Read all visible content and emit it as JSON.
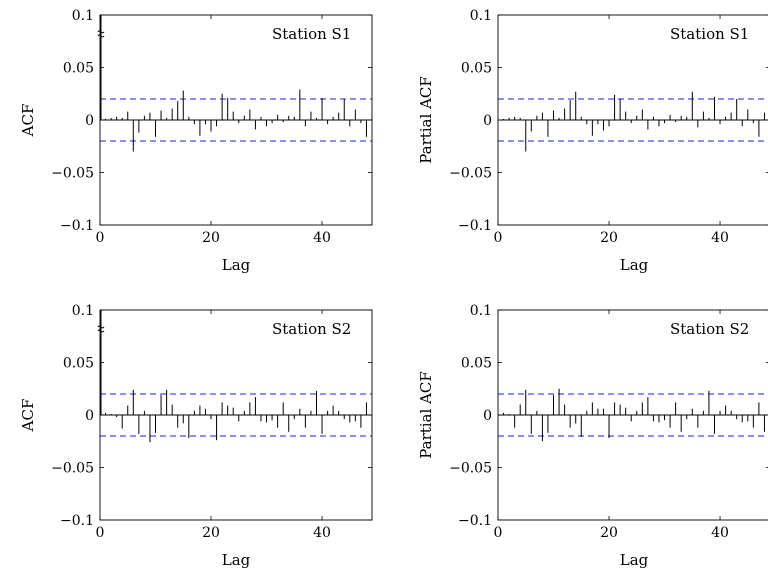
{
  "chart_data": [
    {
      "type": "bar",
      "title": "Station S1",
      "xlabel": "Lag",
      "ylabel": "ACF",
      "xlim": [
        0,
        49
      ],
      "ylim": [
        -0.1,
        0.1
      ],
      "x_ticks": [
        0,
        20,
        40
      ],
      "y_ticks": [
        -0.1,
        -0.05,
        0,
        0.05,
        0.1
      ],
      "x_tick_labels": [
        "0",
        "20",
        "40"
      ],
      "y_tick_labels": [
        "−0.1",
        "−0.05",
        "0",
        "0.05",
        "0.1"
      ],
      "confidence_band": [
        0.02,
        -0.02
      ],
      "truncated_lag0": true,
      "lags": [
        0,
        1,
        2,
        3,
        4,
        5,
        6,
        7,
        8,
        9,
        10,
        11,
        12,
        13,
        14,
        15,
        16,
        17,
        18,
        19,
        20,
        21,
        22,
        23,
        24,
        25,
        26,
        27,
        28,
        29,
        30,
        31,
        32,
        33,
        34,
        35,
        36,
        37,
        38,
        39,
        40,
        41,
        42,
        43,
        44,
        45,
        46,
        47,
        48,
        49
      ],
      "values": [
        0.1,
        0.001,
        0.002,
        0.003,
        0.002,
        0.008,
        -0.03,
        -0.012,
        0.004,
        0.007,
        -0.016,
        0.009,
        0.002,
        0.011,
        0.018,
        0.028,
        0.003,
        -0.004,
        -0.015,
        -0.004,
        -0.011,
        -0.006,
        0.025,
        0.021,
        0.008,
        -0.003,
        0.004,
        0.01,
        -0.009,
        0.003,
        -0.006,
        -0.003,
        0.005,
        -0.002,
        0.004,
        0.003,
        0.029,
        -0.006,
        0.008,
        0.002,
        0.021,
        -0.004,
        0.003,
        0.007,
        0.02,
        -0.006,
        0.01,
        -0.003,
        -0.016,
        0.007
      ]
    },
    {
      "type": "bar",
      "title": "Station S1",
      "xlabel": "Lag",
      "ylabel": "Partial ACF",
      "xlim": [
        0,
        49
      ],
      "ylim": [
        -0.1,
        0.1
      ],
      "x_ticks": [
        0,
        20,
        40
      ],
      "y_ticks": [
        -0.1,
        -0.05,
        0,
        0.05,
        0.1
      ],
      "x_tick_labels": [
        "0",
        "20",
        "40"
      ],
      "y_tick_labels": [
        "−0.1",
        "−0.05",
        "0",
        "0.05",
        "0.1"
      ],
      "confidence_band": [
        0.02,
        -0.02
      ],
      "truncated_lag0": false,
      "lags": [
        1,
        2,
        3,
        4,
        5,
        6,
        7,
        8,
        9,
        10,
        11,
        12,
        13,
        14,
        15,
        16,
        17,
        18,
        19,
        20,
        21,
        22,
        23,
        24,
        25,
        26,
        27,
        28,
        29,
        30,
        31,
        32,
        33,
        34,
        35,
        36,
        37,
        38,
        39,
        40,
        41,
        42,
        43,
        44,
        45,
        46,
        47,
        48,
        49
      ],
      "values": [
        0.001,
        0.002,
        0.003,
        0.002,
        -0.03,
        -0.011,
        0.004,
        0.007,
        -0.016,
        0.009,
        0.002,
        0.011,
        0.019,
        0.027,
        0.003,
        -0.004,
        -0.015,
        -0.004,
        -0.01,
        -0.006,
        0.024,
        0.02,
        0.008,
        -0.003,
        0.004,
        0.01,
        -0.009,
        0.003,
        -0.006,
        -0.003,
        0.005,
        -0.002,
        0.004,
        0.003,
        0.027,
        -0.007,
        0.008,
        0.002,
        0.022,
        -0.004,
        0.003,
        0.007,
        0.02,
        -0.006,
        0.01,
        -0.003,
        -0.016,
        0.007,
        0.003
      ]
    },
    {
      "type": "bar",
      "title": "Station S2",
      "xlabel": "Lag",
      "ylabel": "ACF",
      "xlim": [
        0,
        49
      ],
      "ylim": [
        -0.1,
        0.1
      ],
      "x_ticks": [
        0,
        20,
        40
      ],
      "y_ticks": [
        -0.1,
        -0.05,
        0,
        0.05,
        0.1
      ],
      "x_tick_labels": [
        "0",
        "20",
        "40"
      ],
      "y_tick_labels": [
        "−0.1",
        "−0.05",
        "0",
        "0.05",
        "0.1"
      ],
      "confidence_band": [
        0.02,
        -0.02
      ],
      "truncated_lag0": true,
      "lags": [
        0,
        1,
        2,
        3,
        4,
        5,
        6,
        7,
        8,
        9,
        10,
        11,
        12,
        13,
        14,
        15,
        16,
        17,
        18,
        19,
        20,
        21,
        22,
        23,
        24,
        25,
        26,
        27,
        28,
        29,
        30,
        31,
        32,
        33,
        34,
        35,
        36,
        37,
        38,
        39,
        40,
        41,
        42,
        43,
        44,
        45,
        46,
        47,
        48,
        49
      ],
      "values": [
        0.1,
        0.002,
        0.001,
        -0.002,
        -0.013,
        0.009,
        0.024,
        -0.018,
        0.004,
        -0.026,
        -0.017,
        0.019,
        0.024,
        0.01,
        -0.012,
        -0.008,
        -0.022,
        0.004,
        0.009,
        0.006,
        -0.004,
        -0.024,
        0.012,
        0.009,
        0.007,
        -0.006,
        0.004,
        0.012,
        0.017,
        -0.006,
        -0.007,
        -0.005,
        -0.012,
        0.012,
        -0.016,
        -0.004,
        0.006,
        -0.012,
        0.004,
        0.023,
        -0.018,
        0.004,
        0.009,
        0.004,
        -0.004,
        -0.007,
        -0.006,
        -0.012,
        0.012,
        -0.016
      ]
    },
    {
      "type": "bar",
      "title": "Station S2",
      "xlabel": "Lag",
      "ylabel": "Partial ACF",
      "xlim": [
        0,
        49
      ],
      "ylim": [
        -0.1,
        0.1
      ],
      "x_ticks": [
        0,
        20,
        40
      ],
      "y_ticks": [
        -0.1,
        -0.05,
        0,
        0.05,
        0.1
      ],
      "x_tick_labels": [
        "0",
        "20",
        "40"
      ],
      "y_tick_labels": [
        "−0.1",
        "−0.05",
        "0",
        "0.05",
        "0.1"
      ],
      "confidence_band": [
        0.02,
        -0.02
      ],
      "truncated_lag0": false,
      "lags": [
        1,
        2,
        3,
        4,
        5,
        6,
        7,
        8,
        9,
        10,
        11,
        12,
        13,
        14,
        15,
        16,
        17,
        18,
        19,
        20,
        21,
        22,
        23,
        24,
        25,
        26,
        27,
        28,
        29,
        30,
        31,
        32,
        33,
        34,
        35,
        36,
        37,
        38,
        39,
        40,
        41,
        42,
        43,
        44,
        45,
        46,
        47,
        48,
        49
      ],
      "values": [
        0.002,
        0.001,
        -0.012,
        0.01,
        0.024,
        -0.018,
        0.004,
        -0.025,
        -0.017,
        0.019,
        0.025,
        0.01,
        -0.012,
        -0.008,
        -0.021,
        0.004,
        0.012,
        0.006,
        0.006,
        -0.022,
        0.012,
        0.01,
        0.007,
        -0.006,
        0.004,
        0.012,
        0.017,
        -0.006,
        -0.007,
        -0.005,
        -0.012,
        0.012,
        -0.016,
        -0.004,
        0.006,
        -0.012,
        0.004,
        0.023,
        -0.018,
        0.004,
        0.009,
        0.004,
        -0.004,
        -0.007,
        -0.006,
        -0.012,
        0.012,
        -0.016,
        0.005
      ]
    }
  ],
  "colors": {
    "spike": "#000000",
    "confidence": "#1f1fe6",
    "frame": "#000000"
  }
}
